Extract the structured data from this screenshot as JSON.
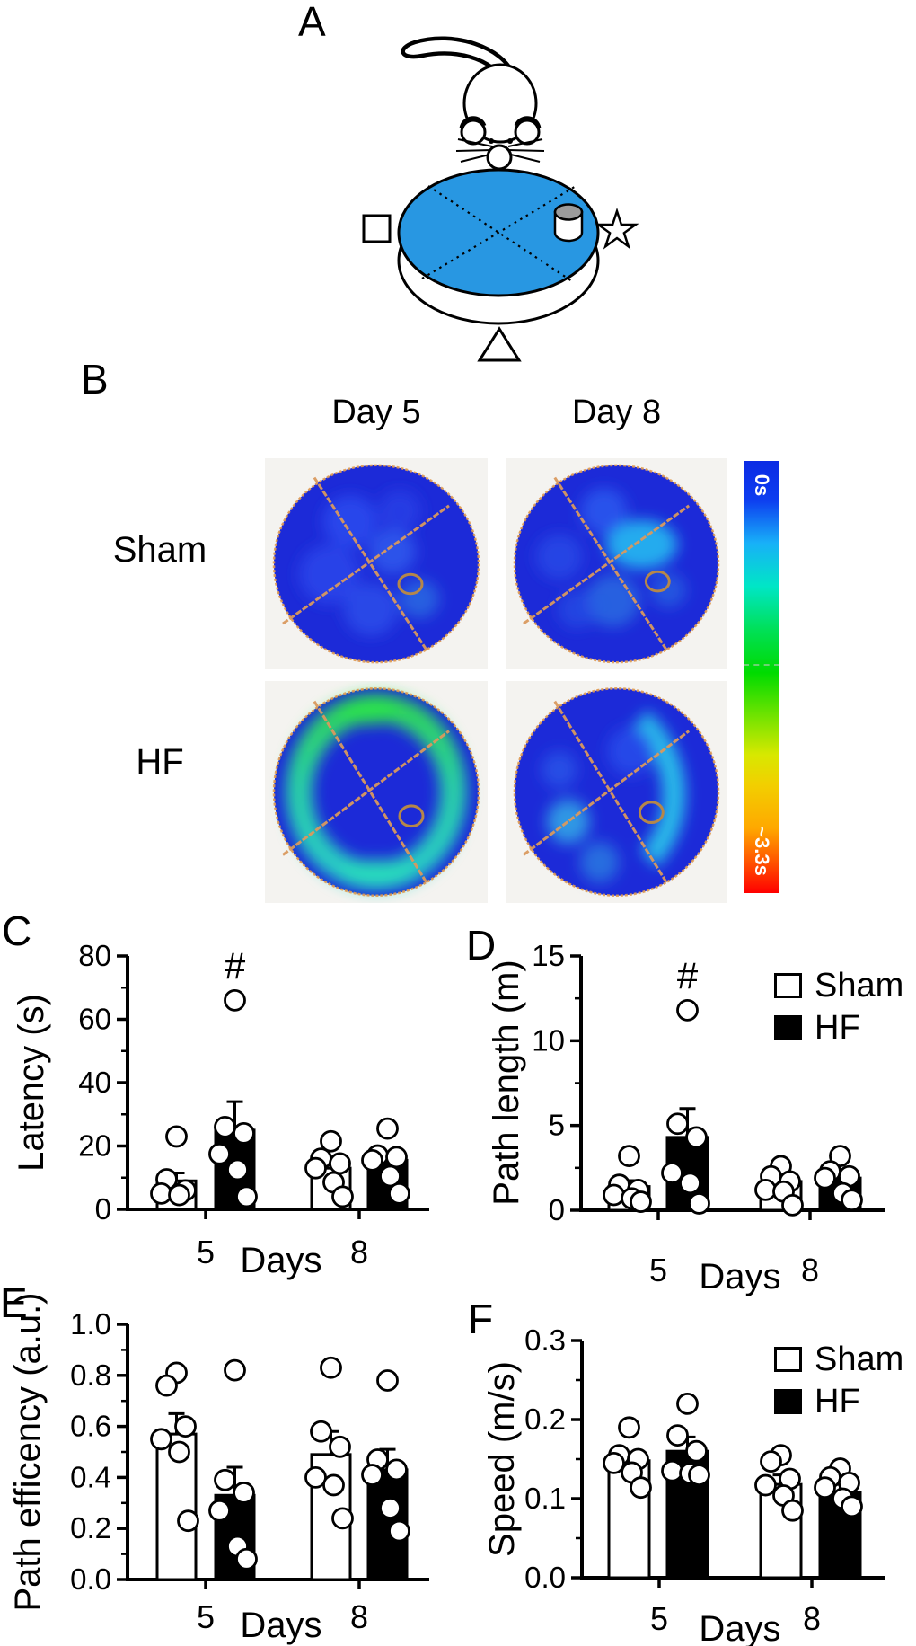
{
  "panel_labels": {
    "a": "A",
    "b": "B",
    "c": "C",
    "d": "D",
    "e": "E",
    "f": "F"
  },
  "panel_a": {
    "description": "water maze schematic",
    "cues": [
      "circle",
      "square",
      "star",
      "triangle"
    ]
  },
  "panel_b": {
    "col_headers": [
      "Day 5",
      "Day 8"
    ],
    "row_labels": [
      "Sham",
      "HF"
    ],
    "colorbar": {
      "top_label": "0s",
      "bottom_label": "~3.3s"
    }
  },
  "legend": {
    "items": [
      {
        "label": "Sham",
        "fill": "#ffffff"
      },
      {
        "label": "HF",
        "fill": "#000000"
      }
    ]
  },
  "colors": {
    "pool_blue": "#2897e2",
    "accent_orange": "#d9995e",
    "platform_gray": "#9b9b9b"
  },
  "chart_data": [
    {
      "panel": "C",
      "type": "bar",
      "ylabel": "Latency (s)",
      "xlabel": "Days",
      "categories": [
        "5",
        "8"
      ],
      "ylim": [
        0,
        80
      ],
      "yticks": [
        0,
        20,
        40,
        60,
        80
      ],
      "ytick_labels": [
        "0",
        "20",
        "40",
        "60",
        "80"
      ],
      "legend_position": null,
      "series": [
        {
          "name": "Sham",
          "fill": "#ffffff",
          "means": [
            9,
            13
          ],
          "error_top": [
            11.5,
            16
          ],
          "points": [
            [
              23,
              9.5,
              6,
              5,
              4.5
            ],
            [
              21.5,
              16,
              14.5,
              13,
              8.5,
              4
            ]
          ]
        },
        {
          "name": "HF",
          "fill": "#000000",
          "means": [
            25,
            15.5
          ],
          "error_top": [
            34,
            17.5
          ],
          "points": [
            [
              66,
              26,
              24,
              17.5,
              12.5,
              4
            ],
            [
              25.5,
              17,
              16.5,
              15.5,
              10.5,
              5
            ]
          ]
        }
      ],
      "annotation": {
        "text": "#",
        "series": 1,
        "category": 0
      }
    },
    {
      "panel": "D",
      "type": "bar",
      "ylabel": "Path length (m)",
      "xlabel": "Days",
      "categories": [
        "5",
        "8"
      ],
      "ylim": [
        0,
        15
      ],
      "yticks": [
        0,
        5,
        10,
        15
      ],
      "ytick_labels": [
        "0",
        "5",
        "10",
        "15"
      ],
      "legend_position": "top-right",
      "series": [
        {
          "name": "Sham",
          "fill": "#ffffff",
          "means": [
            1.4,
            1.7
          ],
          "error_top": [
            1.75,
            2.05
          ],
          "points": [
            [
              3.2,
              1.5,
              1.2,
              0.9,
              0.7,
              0.5
            ],
            [
              2.6,
              2.0,
              1.7,
              1.2,
              1.1,
              0.3
            ]
          ]
        },
        {
          "name": "HF",
          "fill": "#000000",
          "means": [
            4.3,
            1.9
          ],
          "error_top": [
            6.0,
            2.3
          ],
          "points": [
            [
              11.8,
              5.1,
              4.3,
              2.2,
              1.6,
              0.4
            ],
            [
              3.2,
              2.3,
              2.0,
              1.9,
              1.0,
              0.6
            ]
          ]
        }
      ],
      "annotation": {
        "text": "#",
        "series": 1,
        "category": 0
      }
    },
    {
      "panel": "E",
      "type": "bar",
      "ylabel": "Path efficency (a.u.)",
      "xlabel": "Days",
      "categories": [
        "5",
        "8"
      ],
      "ylim": [
        0,
        1.0
      ],
      "yticks": [
        0,
        0.2,
        0.4,
        0.6,
        0.8,
        1.0
      ],
      "ytick_labels": [
        "0.0",
        "0.2",
        "0.4",
        "0.6",
        "0.8",
        "1.0"
      ],
      "legend_position": null,
      "series": [
        {
          "name": "Sham",
          "fill": "#ffffff",
          "means": [
            0.57,
            0.49
          ],
          "error_top": [
            0.65,
            0.58
          ],
          "points": [
            [
              0.81,
              0.76,
              0.6,
              0.55,
              0.5,
              0.23
            ],
            [
              0.83,
              0.58,
              0.52,
              0.4,
              0.37,
              0.24
            ]
          ]
        },
        {
          "name": "HF",
          "fill": "#000000",
          "means": [
            0.33,
            0.43
          ],
          "error_top": [
            0.44,
            0.51
          ],
          "points": [
            [
              0.82,
              0.39,
              0.34,
              0.27,
              0.13,
              0.08
            ],
            [
              0.78,
              0.47,
              0.43,
              0.41,
              0.28,
              0.19
            ]
          ]
        }
      ],
      "annotation": null
    },
    {
      "panel": "F",
      "type": "bar",
      "ylabel": "Speed (m/s)",
      "xlabel": "Days",
      "categories": [
        "5",
        "8"
      ],
      "ylim": [
        0,
        0.3
      ],
      "yticks": [
        0,
        0.1,
        0.2,
        0.3
      ],
      "ytick_labels": [
        "0.0",
        "0.1",
        "0.2",
        "0.3"
      ],
      "legend_position": "top-right",
      "series": [
        {
          "name": "Sham",
          "fill": "#ffffff",
          "means": [
            0.148,
            0.118
          ],
          "error_top": [
            0.158,
            0.13
          ],
          "points": [
            [
              0.19,
              0.155,
              0.15,
              0.145,
              0.133,
              0.114
            ],
            [
              0.155,
              0.147,
              0.125,
              0.117,
              0.104,
              0.085
            ]
          ]
        },
        {
          "name": "HF",
          "fill": "#000000",
          "means": [
            0.16,
            0.108
          ],
          "error_top": [
            0.178,
            0.118
          ],
          "points": [
            [
              0.22,
              0.18,
              0.16,
              0.135,
              0.132,
              0.13
            ],
            [
              0.138,
              0.127,
              0.12,
              0.114,
              0.1,
              0.09
            ]
          ]
        }
      ],
      "annotation": null
    }
  ]
}
